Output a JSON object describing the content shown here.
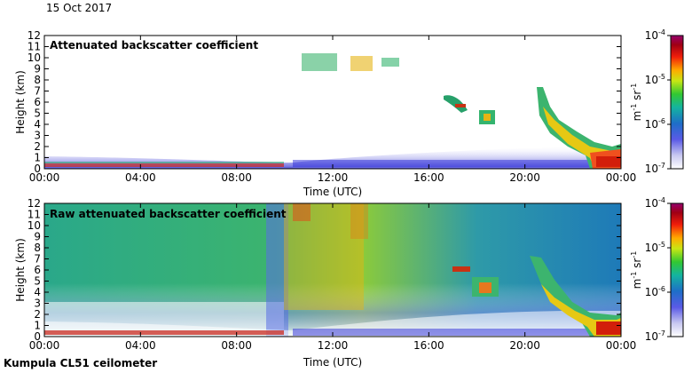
{
  "date_label": "15 Oct 2017",
  "footer": "Kumpula CL51 ceilometer",
  "chart_data": [
    {
      "type": "heatmap",
      "title": "Attenuated backscatter coefficient",
      "xlabel": "Time (UTC)",
      "ylabel": "Height (km)",
      "x_ticks": [
        "00:00",
        "04:00",
        "08:00",
        "12:00",
        "16:00",
        "20:00",
        "00:00"
      ],
      "x_range_hours": [
        0,
        24
      ],
      "y_ticks": [
        "0",
        "1",
        "2",
        "3",
        "4",
        "5",
        "6",
        "7",
        "8",
        "9",
        "10",
        "11",
        "12"
      ],
      "ylim": [
        0,
        12
      ],
      "colorbar": {
        "labels": [
          "10",
          "10",
          "10",
          "10"
        ],
        "exponents": [
          "-4",
          "-5",
          "-6",
          "-7"
        ],
        "values": [
          0.0001,
          1e-05,
          1e-06,
          1e-07
        ],
        "unit_main": "m",
        "unit_exp1": "-1",
        "unit_mid": " sr",
        "unit_exp2": "-1"
      }
    },
    {
      "type": "heatmap",
      "title": "Raw attenuated backscatter coefficient",
      "xlabel": "Time (UTC)",
      "ylabel": "Height (km)",
      "x_ticks": [
        "00:00",
        "04:00",
        "08:00",
        "12:00",
        "16:00",
        "20:00",
        "00:00"
      ],
      "x_range_hours": [
        0,
        24
      ],
      "y_ticks": [
        "0",
        "1",
        "2",
        "3",
        "4",
        "5",
        "6",
        "7",
        "8",
        "9",
        "10",
        "11",
        "12"
      ],
      "ylim": [
        0,
        12
      ],
      "colorbar": {
        "labels": [
          "10",
          "10",
          "10",
          "10"
        ],
        "exponents": [
          "-4",
          "-5",
          "-6",
          "-7"
        ],
        "values": [
          0.0001,
          1e-05,
          1e-06,
          1e-07
        ],
        "unit_main": "m",
        "unit_exp1": "-1",
        "unit_mid": " sr",
        "unit_exp2": "-1"
      }
    }
  ]
}
